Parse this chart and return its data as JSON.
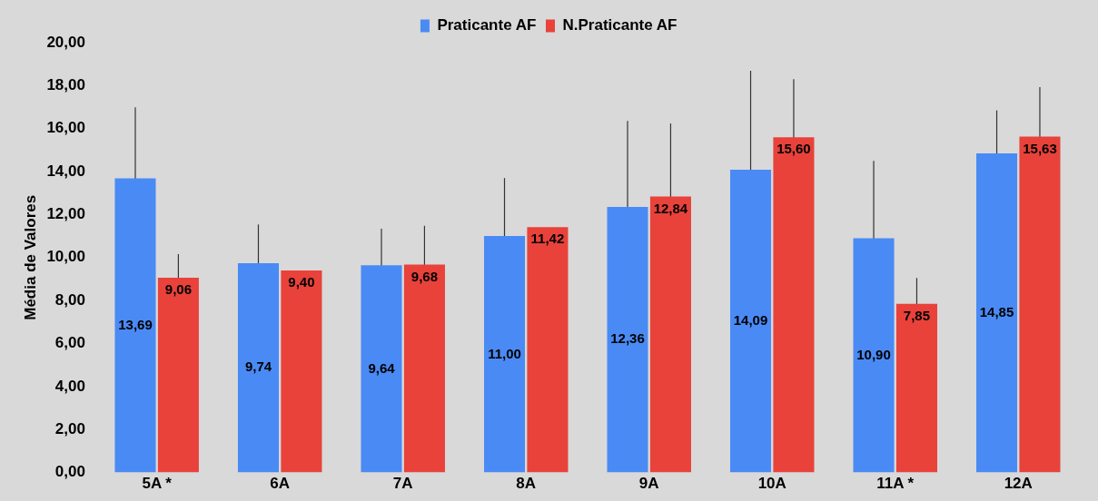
{
  "chart_data": {
    "type": "bar",
    "ylabel": "Média de Valores",
    "categories": [
      "5A *",
      "6A",
      "7A",
      "8A",
      "9A",
      "10A",
      "11A *",
      "12A"
    ],
    "series": [
      {
        "name": "Praticante AF",
        "color": "#4a8af4",
        "values": [
          13.69,
          9.74,
          9.64,
          11.0,
          12.36,
          14.09,
          10.9,
          14.85
        ],
        "errors": [
          3.3,
          1.8,
          1.7,
          2.7,
          4.0,
          4.6,
          3.6,
          2.0
        ],
        "value_labels": [
          "13,69",
          "9,74",
          "9,64",
          "11,00",
          "12,36",
          "14,09",
          "10,90",
          "14,85"
        ]
      },
      {
        "name": "N.Praticante AF",
        "color": "#e8423a",
        "values": [
          9.06,
          9.4,
          9.68,
          11.42,
          12.84,
          15.6,
          7.85,
          15.63
        ],
        "errors": [
          1.1,
          null,
          1.8,
          null,
          3.4,
          2.7,
          1.2,
          2.3
        ],
        "value_labels": [
          "9,06",
          "9,40",
          "9,68",
          "11,42",
          "12,84",
          "15,60",
          "7,85",
          "15,63"
        ]
      }
    ],
    "ylim": [
      0,
      20
    ],
    "yticks": [
      {
        "value": 0,
        "label": "0,00"
      },
      {
        "value": 2,
        "label": "2,00"
      },
      {
        "value": 4,
        "label": "4,00"
      },
      {
        "value": 6,
        "label": "6,00"
      },
      {
        "value": 8,
        "label": "8,00"
      },
      {
        "value": 10,
        "label": "10,00"
      },
      {
        "value": 12,
        "label": "12,00"
      },
      {
        "value": 14,
        "label": "14,00"
      },
      {
        "value": 16,
        "label": "16,00"
      },
      {
        "value": 18,
        "label": "18,00"
      },
      {
        "value": 20,
        "label": "20,00"
      }
    ],
    "grid": false,
    "legend": "top"
  }
}
